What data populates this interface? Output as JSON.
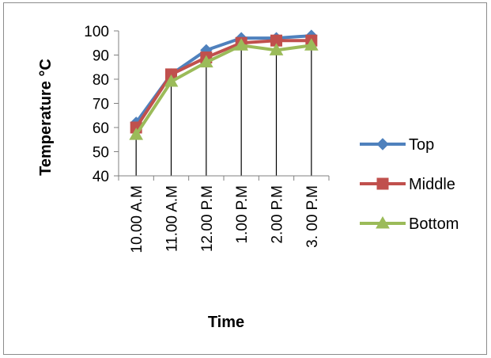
{
  "chart_data": {
    "type": "line",
    "title": "",
    "xlabel": "Time",
    "ylabel": "Temperature °C",
    "categories": [
      "10.00 A.M",
      "11.00 A.M",
      "12.00 P.M",
      "1.00 P.M",
      "2.00 P.M",
      "3. 00 P.M"
    ],
    "ylim": [
      40,
      100
    ],
    "yticks": [
      40,
      50,
      60,
      70,
      80,
      90,
      100
    ],
    "grid": "vertical drop lines",
    "legend_position": "right",
    "series": [
      {
        "name": "Top",
        "values": [
          62,
          82,
          92,
          97,
          97,
          98
        ],
        "color": "#4f81bd",
        "marker": "diamond"
      },
      {
        "name": "Middle",
        "values": [
          60,
          82,
          89,
          95,
          96,
          96
        ],
        "color": "#c0504d",
        "marker": "square"
      },
      {
        "name": "Bottom",
        "values": [
          57,
          79,
          87,
          94,
          92,
          94
        ],
        "color": "#9bbb59",
        "marker": "triangle"
      }
    ]
  }
}
